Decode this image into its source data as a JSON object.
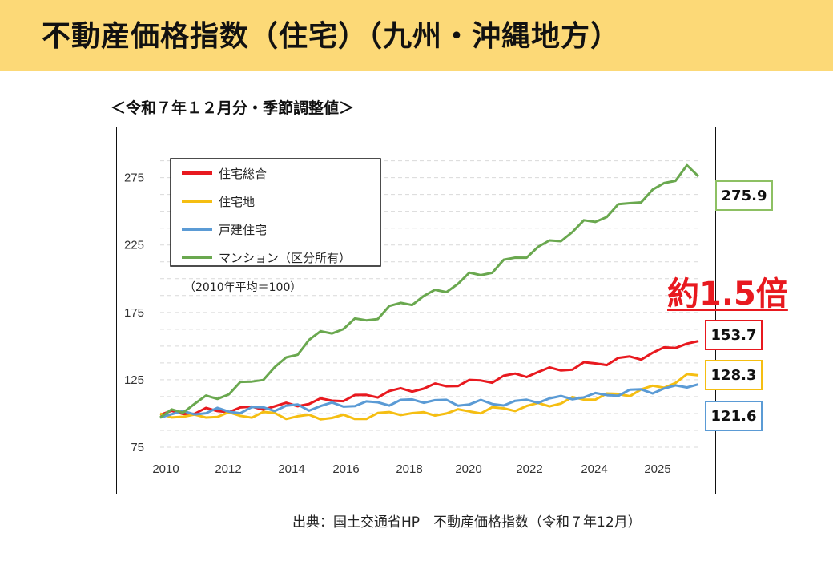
{
  "title": "不動産価格指数（住宅）（九州・沖縄地方）",
  "subtitle": "＜令和７年１２月分・季節調整値＞",
  "source": "出典：国土交通省HP　不動産価格指数（令和７年12月）",
  "multiplier_label": "約1.5倍",
  "colors": {
    "title_bg": "#fcd977",
    "housing_total": "#e8191f",
    "residential_land": "#f5be12",
    "detached_house": "#5b9bd5",
    "condominium": "#6aa84f",
    "condo_box_border": "#8dc063",
    "multiplier_text": "#e8191f"
  },
  "chart_data": {
    "type": "line",
    "base_note": "（2010年平均＝100）",
    "x_ticks": [
      "2010",
      "2012",
      "2014",
      "2016",
      "2018",
      "2020",
      "2022",
      "2024",
      "2025"
    ],
    "y_ticks": [
      75,
      125,
      175,
      225,
      275
    ],
    "ylim": [
      75,
      295
    ],
    "grid": true,
    "legend_position": "top-left",
    "series": [
      {
        "name": "住宅総合",
        "color": "#e8191f",
        "last_value": "153.7",
        "values": [
          99,
          100,
          101,
          101,
          102,
          102,
          103,
          103,
          104,
          105,
          105,
          106,
          107,
          108,
          109,
          110,
          111,
          112,
          113,
          114,
          116,
          117,
          118,
          119,
          120,
          121,
          122,
          123,
          124,
          125,
          127,
          128,
          129,
          131,
          132,
          133,
          134,
          136,
          137,
          138,
          140,
          141,
          142,
          145,
          147,
          150,
          153,
          153.7
        ]
      },
      {
        "name": "住宅地",
        "color": "#f5be12",
        "last_value": "128.3",
        "values": [
          100,
          99,
          98,
          97,
          98,
          99,
          99,
          98,
          99,
          100,
          99,
          98,
          98,
          97,
          97,
          98,
          97,
          96,
          98,
          99,
          100,
          101,
          100,
          99,
          100,
          101,
          101,
          102,
          102,
          103,
          103,
          104,
          105,
          106,
          107,
          108,
          110,
          111,
          112,
          113,
          114,
          115,
          117,
          119,
          121,
          123,
          127,
          128.3
        ]
      },
      {
        "name": "戸建住宅",
        "color": "#5b9bd5",
        "last_value": "121.6",
        "values": [
          97,
          99,
          100,
          101,
          101,
          102,
          102,
          102,
          103,
          104,
          104,
          105,
          105,
          104,
          106,
          106,
          106,
          107,
          107,
          108,
          108,
          109,
          109,
          110,
          110,
          108,
          107,
          108,
          108,
          107,
          108,
          108,
          109,
          110,
          111,
          111,
          112,
          113,
          113,
          114,
          115,
          116,
          117,
          117,
          118,
          119,
          121,
          121.6
        ]
      },
      {
        "name": "マンション（区分所有）",
        "color": "#6aa84f",
        "last_value": "275.9",
        "values": [
          97,
          101,
          104,
          107,
          110,
          113,
          116,
          120,
          124,
          128,
          132,
          140,
          147,
          154,
          158,
          162,
          164,
          167,
          170,
          173,
          177,
          181,
          184,
          186,
          189,
          193,
          197,
          201,
          204,
          207,
          211,
          215,
          219,
          222,
          226,
          231,
          235,
          240,
          244,
          248,
          252,
          256,
          260,
          264,
          269,
          276,
          284,
          275.9
        ]
      }
    ]
  }
}
